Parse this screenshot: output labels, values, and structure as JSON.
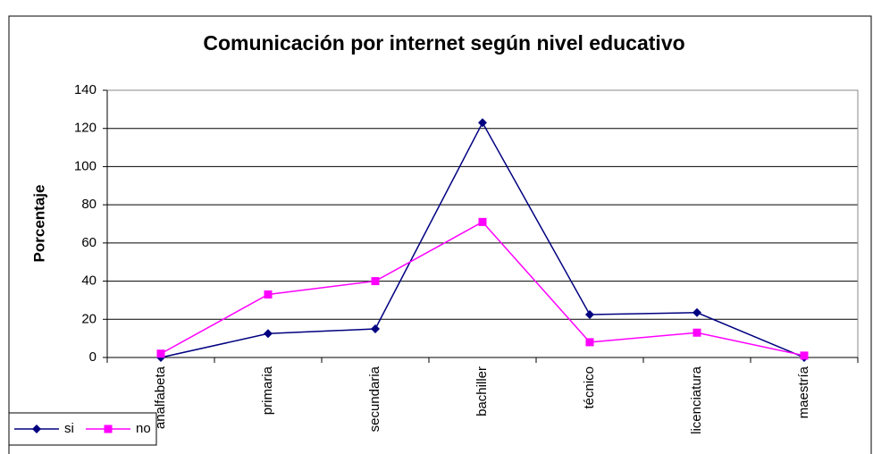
{
  "chart_data": {
    "type": "line",
    "title": "Comunicación por internet según nivel educativo",
    "y_label": "Porcentaje",
    "categories": [
      "analfabeta",
      "primaria",
      "secundaria",
      "bachiller",
      "técnico",
      "licenciatura",
      "maestría"
    ],
    "series": [
      {
        "name": "si",
        "color": "#000080",
        "marker": "diamond",
        "values": [
          0,
          12.5,
          15,
          123,
          22.5,
          23.5,
          0
        ]
      },
      {
        "name": "no",
        "color": "#ff00ff",
        "marker": "square",
        "values": [
          2,
          33,
          40,
          71,
          8,
          13,
          1
        ]
      }
    ],
    "ylim": [
      0,
      140
    ],
    "yticks": [
      0,
      20,
      40,
      60,
      80,
      100,
      120,
      140
    ],
    "grid": true,
    "legend": "bottom-left"
  }
}
